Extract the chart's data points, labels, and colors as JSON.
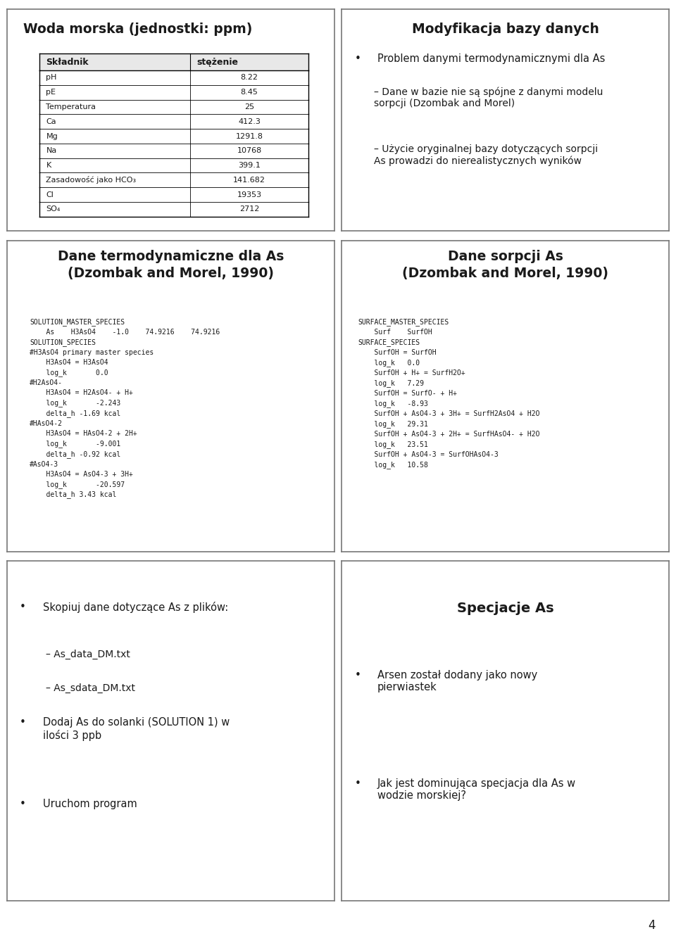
{
  "panel1_title": "Woda morska (jednostki: ppm)",
  "panel1_table_headers": [
    "Składnik",
    "stężenie"
  ],
  "panel1_table_rows": [
    [
      "pH",
      "8.22"
    ],
    [
      "pE",
      "8.45"
    ],
    [
      "Temperatura",
      "25"
    ],
    [
      "Ca",
      "412.3"
    ],
    [
      "Mg",
      "1291.8"
    ],
    [
      "Na",
      "10768"
    ],
    [
      "K",
      "399.1"
    ],
    [
      "Zasadowość jako HCO₃",
      "141.682"
    ],
    [
      "Cl",
      "19353"
    ],
    [
      "SO₄",
      "2712"
    ]
  ],
  "panel2_title": "Modyfikacja bazy danych",
  "panel2_bullets": [
    {
      "level": 0,
      "text": "Problem danymi termodynamicznymi dla As"
    },
    {
      "level": 1,
      "text": "Dane w bazie nie są spójne z danymi modelu\nsorpcji (Dzombak and Morel)"
    },
    {
      "level": 1,
      "text": "Użycie oryginalnej bazy dotyczących sorpcji\nAs prowadzi do nierealistycznych wyników"
    }
  ],
  "panel3_title": "Dane termodynamiczne dla As\n(Dzombak and Morel, 1990)",
  "panel3_code": "SOLUTION_MASTER_SPECIES\n    As    H3AsO4    -1.0    74.9216    74.9216\nSOLUTION_SPECIES\n#H3AsO4 primary master species\n    H3AsO4 = H3AsO4\n    log_k       0.0\n#H2AsO4-\n    H3AsO4 = H2AsO4- + H+\n    log_k       -2.243\n    delta_h -1.69 kcal\n#HAsO4-2\n    H3AsO4 = HAsO4-2 + 2H+\n    log_k       -9.001\n    delta_h -0.92 kcal\n#AsO4-3\n    H3AsO4 = AsO4-3 + 3H+\n    log_k       -20.597\n    delta_h 3.43 kcal",
  "panel4_title": "Dane sorpcji As\n(Dzombak and Morel, 1990)",
  "panel4_code": "SURFACE_MASTER_SPECIES\n    Surf    SurfOH\nSURFACE_SPECIES\n    SurfOH = SurfOH\n    log_k   0.0\n    SurfOH + H+ = SurfH2O+\n    log_k   7.29\n    SurfOH = SurfO- + H+\n    log_k   -8.93\n    SurfOH + AsO4-3 + 3H+ = SurfH2AsO4 + H2O\n    log_k   29.31\n    SurfOH + AsO4-3 + 2H+ = SurfHAsO4- + H2O\n    log_k   23.51\n    SurfOH + AsO4-3 = SurfOHAsO4-3\n    log_k   10.58",
  "panel5_bullets": [
    {
      "level": 0,
      "text": "Skopiuj dane dotyczące As z plików:"
    },
    {
      "level": 1,
      "text": "As_data_DM.txt"
    },
    {
      "level": 1,
      "text": "As_sdata_DM.txt"
    },
    {
      "level": 0,
      "text": "Dodaj As do solanki (SOLUTION 1) w\nilości 3 ppb"
    },
    {
      "level": 0,
      "text": "Uruchom program"
    }
  ],
  "panel6_title": "Specjacje As",
  "panel6_bullets": [
    {
      "level": 0,
      "text": "Arsen został dodany jako nowy\npierwiastek"
    },
    {
      "level": 0,
      "text": "Jak jest dominująca specjacja dla As w\nwodzie morskiej?"
    }
  ],
  "bg_color": "#ffffff",
  "border_color": "#777777",
  "text_color": "#1a1a1a",
  "page_number": "4"
}
